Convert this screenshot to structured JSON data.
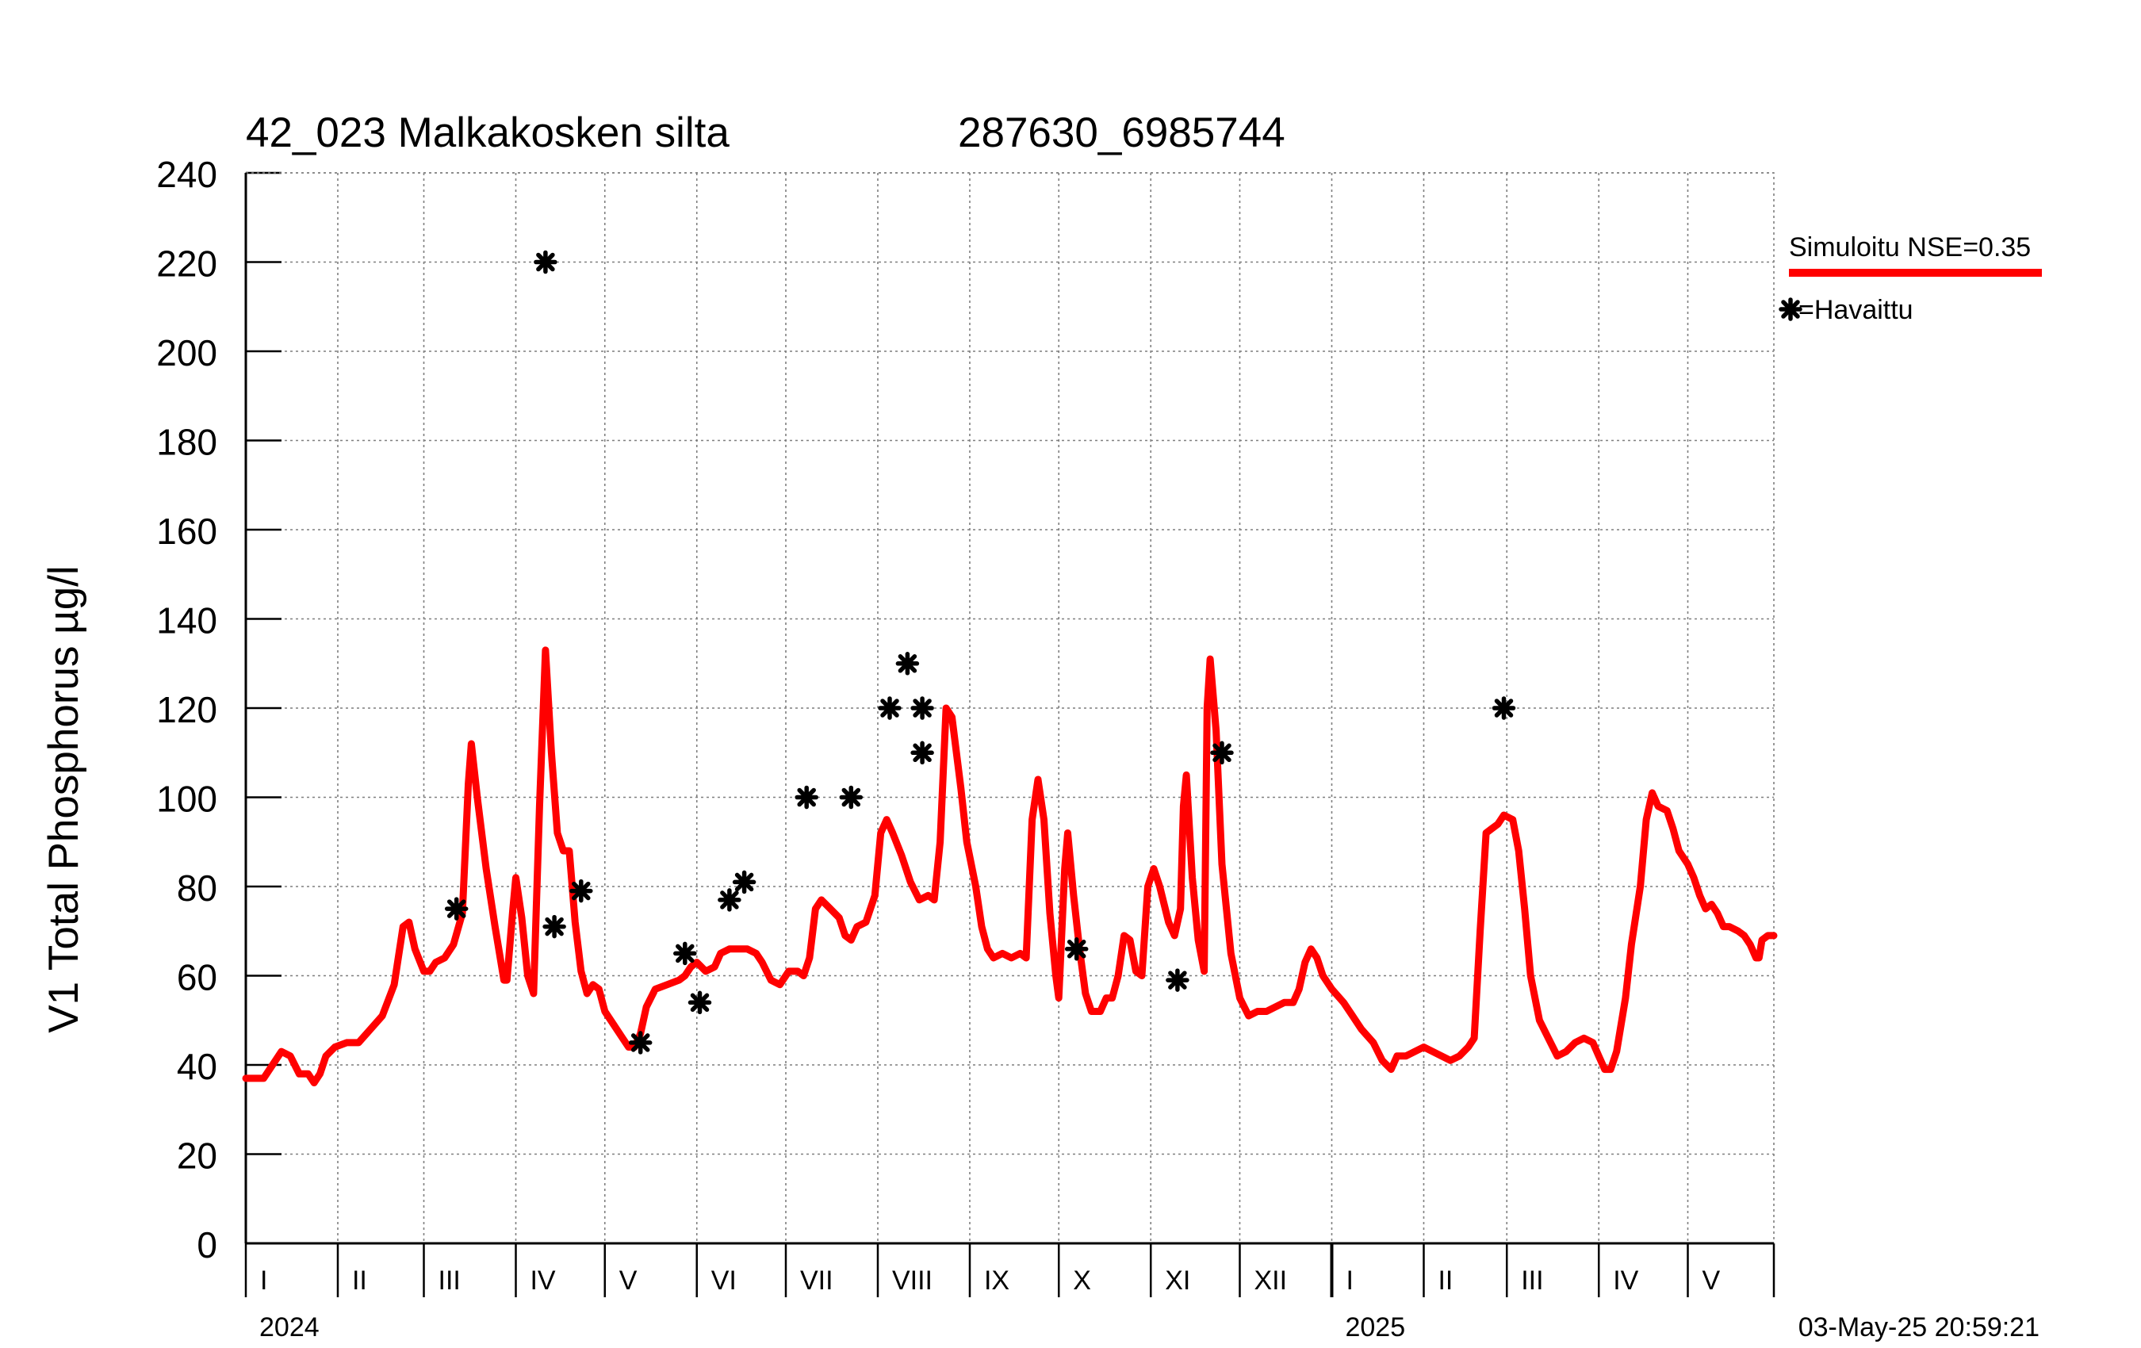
{
  "chart_data": {
    "type": "line",
    "title": "42_023 Malkakosken silta",
    "subtitle": "287630_6985744",
    "ylabel": "V1 Total Phosphorus µg/l",
    "xlabel": "",
    "ylim": [
      0,
      240
    ],
    "yticks": [
      0,
      20,
      40,
      60,
      80,
      100,
      120,
      140,
      160,
      180,
      200,
      220,
      240
    ],
    "x_domain_days": [
      0,
      515
    ],
    "grid": true,
    "legend_position": "right",
    "month_ticks": [
      0,
      31,
      60,
      91,
      121,
      152,
      182,
      213,
      244,
      274,
      305,
      335,
      366,
      397,
      425,
      456,
      486,
      515
    ],
    "month_labels": [
      {
        "label": "I",
        "day": 0
      },
      {
        "label": "II",
        "day": 31
      },
      {
        "label": "III",
        "day": 60
      },
      {
        "label": "IV",
        "day": 91
      },
      {
        "label": "V",
        "day": 121
      },
      {
        "label": "VI",
        "day": 152
      },
      {
        "label": "VII",
        "day": 182
      },
      {
        "label": "VIII",
        "day": 213
      },
      {
        "label": "IX",
        "day": 244
      },
      {
        "label": "X",
        "day": 274
      },
      {
        "label": "XI",
        "day": 305
      },
      {
        "label": "XII",
        "day": 335
      },
      {
        "label": "I",
        "day": 366
      },
      {
        "label": "II",
        "day": 397
      },
      {
        "label": "III",
        "day": 425
      },
      {
        "label": "IV",
        "day": 456
      },
      {
        "label": "V",
        "day": 486
      }
    ],
    "year_labels": [
      {
        "label": "2024",
        "day": 0
      },
      {
        "label": "2025",
        "day": 366
      }
    ],
    "year_boundary_day": 366,
    "series": [
      {
        "name": "Simuloitu NSE=0.35",
        "legend_label": "Simuloitu NSE=0.35",
        "style": "line",
        "color": "#ff0000",
        "points": [
          [
            0,
            37
          ],
          [
            6,
            37
          ],
          [
            9,
            40
          ],
          [
            12,
            43
          ],
          [
            15,
            42
          ],
          [
            18,
            38
          ],
          [
            21,
            38
          ],
          [
            23,
            36
          ],
          [
            25,
            38
          ],
          [
            27,
            42
          ],
          [
            30,
            44
          ],
          [
            34,
            45
          ],
          [
            38,
            45
          ],
          [
            42,
            48
          ],
          [
            46,
            51
          ],
          [
            50,
            58
          ],
          [
            53,
            71
          ],
          [
            55,
            72
          ],
          [
            57,
            66
          ],
          [
            60,
            61
          ],
          [
            62,
            61
          ],
          [
            64,
            63
          ],
          [
            67,
            64
          ],
          [
            70,
            67
          ],
          [
            73,
            74
          ],
          [
            75,
            103
          ],
          [
            76,
            112
          ],
          [
            78,
            100
          ],
          [
            81,
            84
          ],
          [
            84,
            71
          ],
          [
            87,
            59
          ],
          [
            88,
            59
          ],
          [
            90,
            75
          ],
          [
            91,
            82
          ],
          [
            93,
            73
          ],
          [
            95,
            60
          ],
          [
            97,
            56
          ],
          [
            99,
            98
          ],
          [
            101,
            133
          ],
          [
            103,
            110
          ],
          [
            105,
            92
          ],
          [
            107,
            88
          ],
          [
            109,
            88
          ],
          [
            111,
            72
          ],
          [
            113,
            61
          ],
          [
            115,
            56
          ],
          [
            117,
            58
          ],
          [
            119,
            57
          ],
          [
            121,
            52
          ],
          [
            124,
            49
          ],
          [
            127,
            46
          ],
          [
            129,
            44
          ],
          [
            131,
            44
          ],
          [
            133,
            47
          ],
          [
            135,
            53
          ],
          [
            138,
            57
          ],
          [
            142,
            58
          ],
          [
            146,
            59
          ],
          [
            148,
            60
          ],
          [
            150,
            62
          ],
          [
            152,
            63
          ],
          [
            155,
            61
          ],
          [
            158,
            62
          ],
          [
            160,
            65
          ],
          [
            163,
            66
          ],
          [
            166,
            66
          ],
          [
            169,
            66
          ],
          [
            172,
            65
          ],
          [
            174,
            63
          ],
          [
            177,
            59
          ],
          [
            180,
            58
          ],
          [
            183,
            61
          ],
          [
            186,
            61
          ],
          [
            188,
            60
          ],
          [
            190,
            64
          ],
          [
            192,
            75
          ],
          [
            194,
            77
          ],
          [
            197,
            75
          ],
          [
            200,
            73
          ],
          [
            202,
            69
          ],
          [
            204,
            68
          ],
          [
            206,
            71
          ],
          [
            209,
            72
          ],
          [
            212,
            78
          ],
          [
            214,
            92
          ],
          [
            216,
            95
          ],
          [
            218,
            92
          ],
          [
            221,
            87
          ],
          [
            224,
            81
          ],
          [
            227,
            77
          ],
          [
            230,
            78
          ],
          [
            232,
            77
          ],
          [
            234,
            90
          ],
          [
            236,
            120
          ],
          [
            238,
            118
          ],
          [
            241,
            102
          ],
          [
            243,
            90
          ],
          [
            246,
            80
          ],
          [
            248,
            71
          ],
          [
            250,
            66
          ],
          [
            252,
            64
          ],
          [
            255,
            65
          ],
          [
            258,
            64
          ],
          [
            261,
            65
          ],
          [
            263,
            64
          ],
          [
            265,
            95
          ],
          [
            267,
            104
          ],
          [
            269,
            95
          ],
          [
            271,
            74
          ],
          [
            273,
            60
          ],
          [
            274,
            55
          ],
          [
            276,
            84
          ],
          [
            277,
            92
          ],
          [
            279,
            78
          ],
          [
            281,
            66
          ],
          [
            283,
            56
          ],
          [
            285,
            52
          ],
          [
            288,
            52
          ],
          [
            290,
            55
          ],
          [
            292,
            55
          ],
          [
            294,
            60
          ],
          [
            296,
            69
          ],
          [
            298,
            68
          ],
          [
            300,
            61
          ],
          [
            302,
            60
          ],
          [
            304,
            80
          ],
          [
            306,
            84
          ],
          [
            308,
            80
          ],
          [
            311,
            72
          ],
          [
            313,
            69
          ],
          [
            315,
            75
          ],
          [
            316,
            98
          ],
          [
            317,
            105
          ],
          [
            319,
            82
          ],
          [
            321,
            68
          ],
          [
            323,
            61
          ],
          [
            324,
            120
          ],
          [
            325,
            131
          ],
          [
            327,
            115
          ],
          [
            329,
            85
          ],
          [
            332,
            65
          ],
          [
            335,
            55
          ],
          [
            338,
            51
          ],
          [
            341,
            52
          ],
          [
            344,
            52
          ],
          [
            347,
            53
          ],
          [
            350,
            54
          ],
          [
            353,
            54
          ],
          [
            355,
            57
          ],
          [
            357,
            63
          ],
          [
            359,
            66
          ],
          [
            361,
            64
          ],
          [
            363,
            60
          ],
          [
            366,
            57
          ],
          [
            370,
            54
          ],
          [
            373,
            51
          ],
          [
            376,
            48
          ],
          [
            380,
            45
          ],
          [
            383,
            41
          ],
          [
            386,
            39
          ],
          [
            388,
            42
          ],
          [
            391,
            42
          ],
          [
            394,
            43
          ],
          [
            397,
            44
          ],
          [
            400,
            43
          ],
          [
            403,
            42
          ],
          [
            406,
            41
          ],
          [
            409,
            42
          ],
          [
            412,
            44
          ],
          [
            414,
            46
          ],
          [
            416,
            70
          ],
          [
            418,
            92
          ],
          [
            420,
            93
          ],
          [
            422,
            94
          ],
          [
            424,
            96
          ],
          [
            427,
            95
          ],
          [
            429,
            88
          ],
          [
            431,
            75
          ],
          [
            433,
            60
          ],
          [
            436,
            50
          ],
          [
            439,
            46
          ],
          [
            442,
            42
          ],
          [
            445,
            43
          ],
          [
            448,
            45
          ],
          [
            451,
            46
          ],
          [
            454,
            45
          ],
          [
            456,
            42
          ],
          [
            458,
            39
          ],
          [
            460,
            39
          ],
          [
            462,
            43
          ],
          [
            465,
            55
          ],
          [
            467,
            67
          ],
          [
            470,
            80
          ],
          [
            472,
            95
          ],
          [
            474,
            101
          ],
          [
            476,
            98
          ],
          [
            479,
            97
          ],
          [
            481,
            93
          ],
          [
            483,
            88
          ],
          [
            486,
            85
          ],
          [
            488,
            82
          ],
          [
            490,
            78
          ],
          [
            492,
            75
          ],
          [
            494,
            76
          ],
          [
            496,
            74
          ],
          [
            498,
            71
          ],
          [
            500,
            71
          ],
          [
            503,
            70
          ],
          [
            505,
            69
          ],
          [
            507,
            67
          ],
          [
            509,
            64
          ],
          [
            510,
            64
          ],
          [
            511,
            68
          ],
          [
            513,
            69
          ],
          [
            515,
            69
          ]
        ]
      },
      {
        "name": "Havaittu",
        "legend_label": "=Havaittu",
        "style": "marker",
        "color": "#000000",
        "points": [
          [
            71,
            75
          ],
          [
            101,
            220
          ],
          [
            104,
            71
          ],
          [
            113,
            79
          ],
          [
            133,
            45
          ],
          [
            148,
            65
          ],
          [
            153,
            54
          ],
          [
            163,
            77
          ],
          [
            168,
            81
          ],
          [
            189,
            100
          ],
          [
            204,
            100
          ],
          [
            217,
            120
          ],
          [
            223,
            130
          ],
          [
            228,
            120
          ],
          [
            228,
            110
          ],
          [
            280,
            66
          ],
          [
            314,
            59
          ],
          [
            329,
            110
          ],
          [
            424,
            120
          ]
        ]
      }
    ]
  },
  "timestamp": "03-May-25 20:59:21"
}
